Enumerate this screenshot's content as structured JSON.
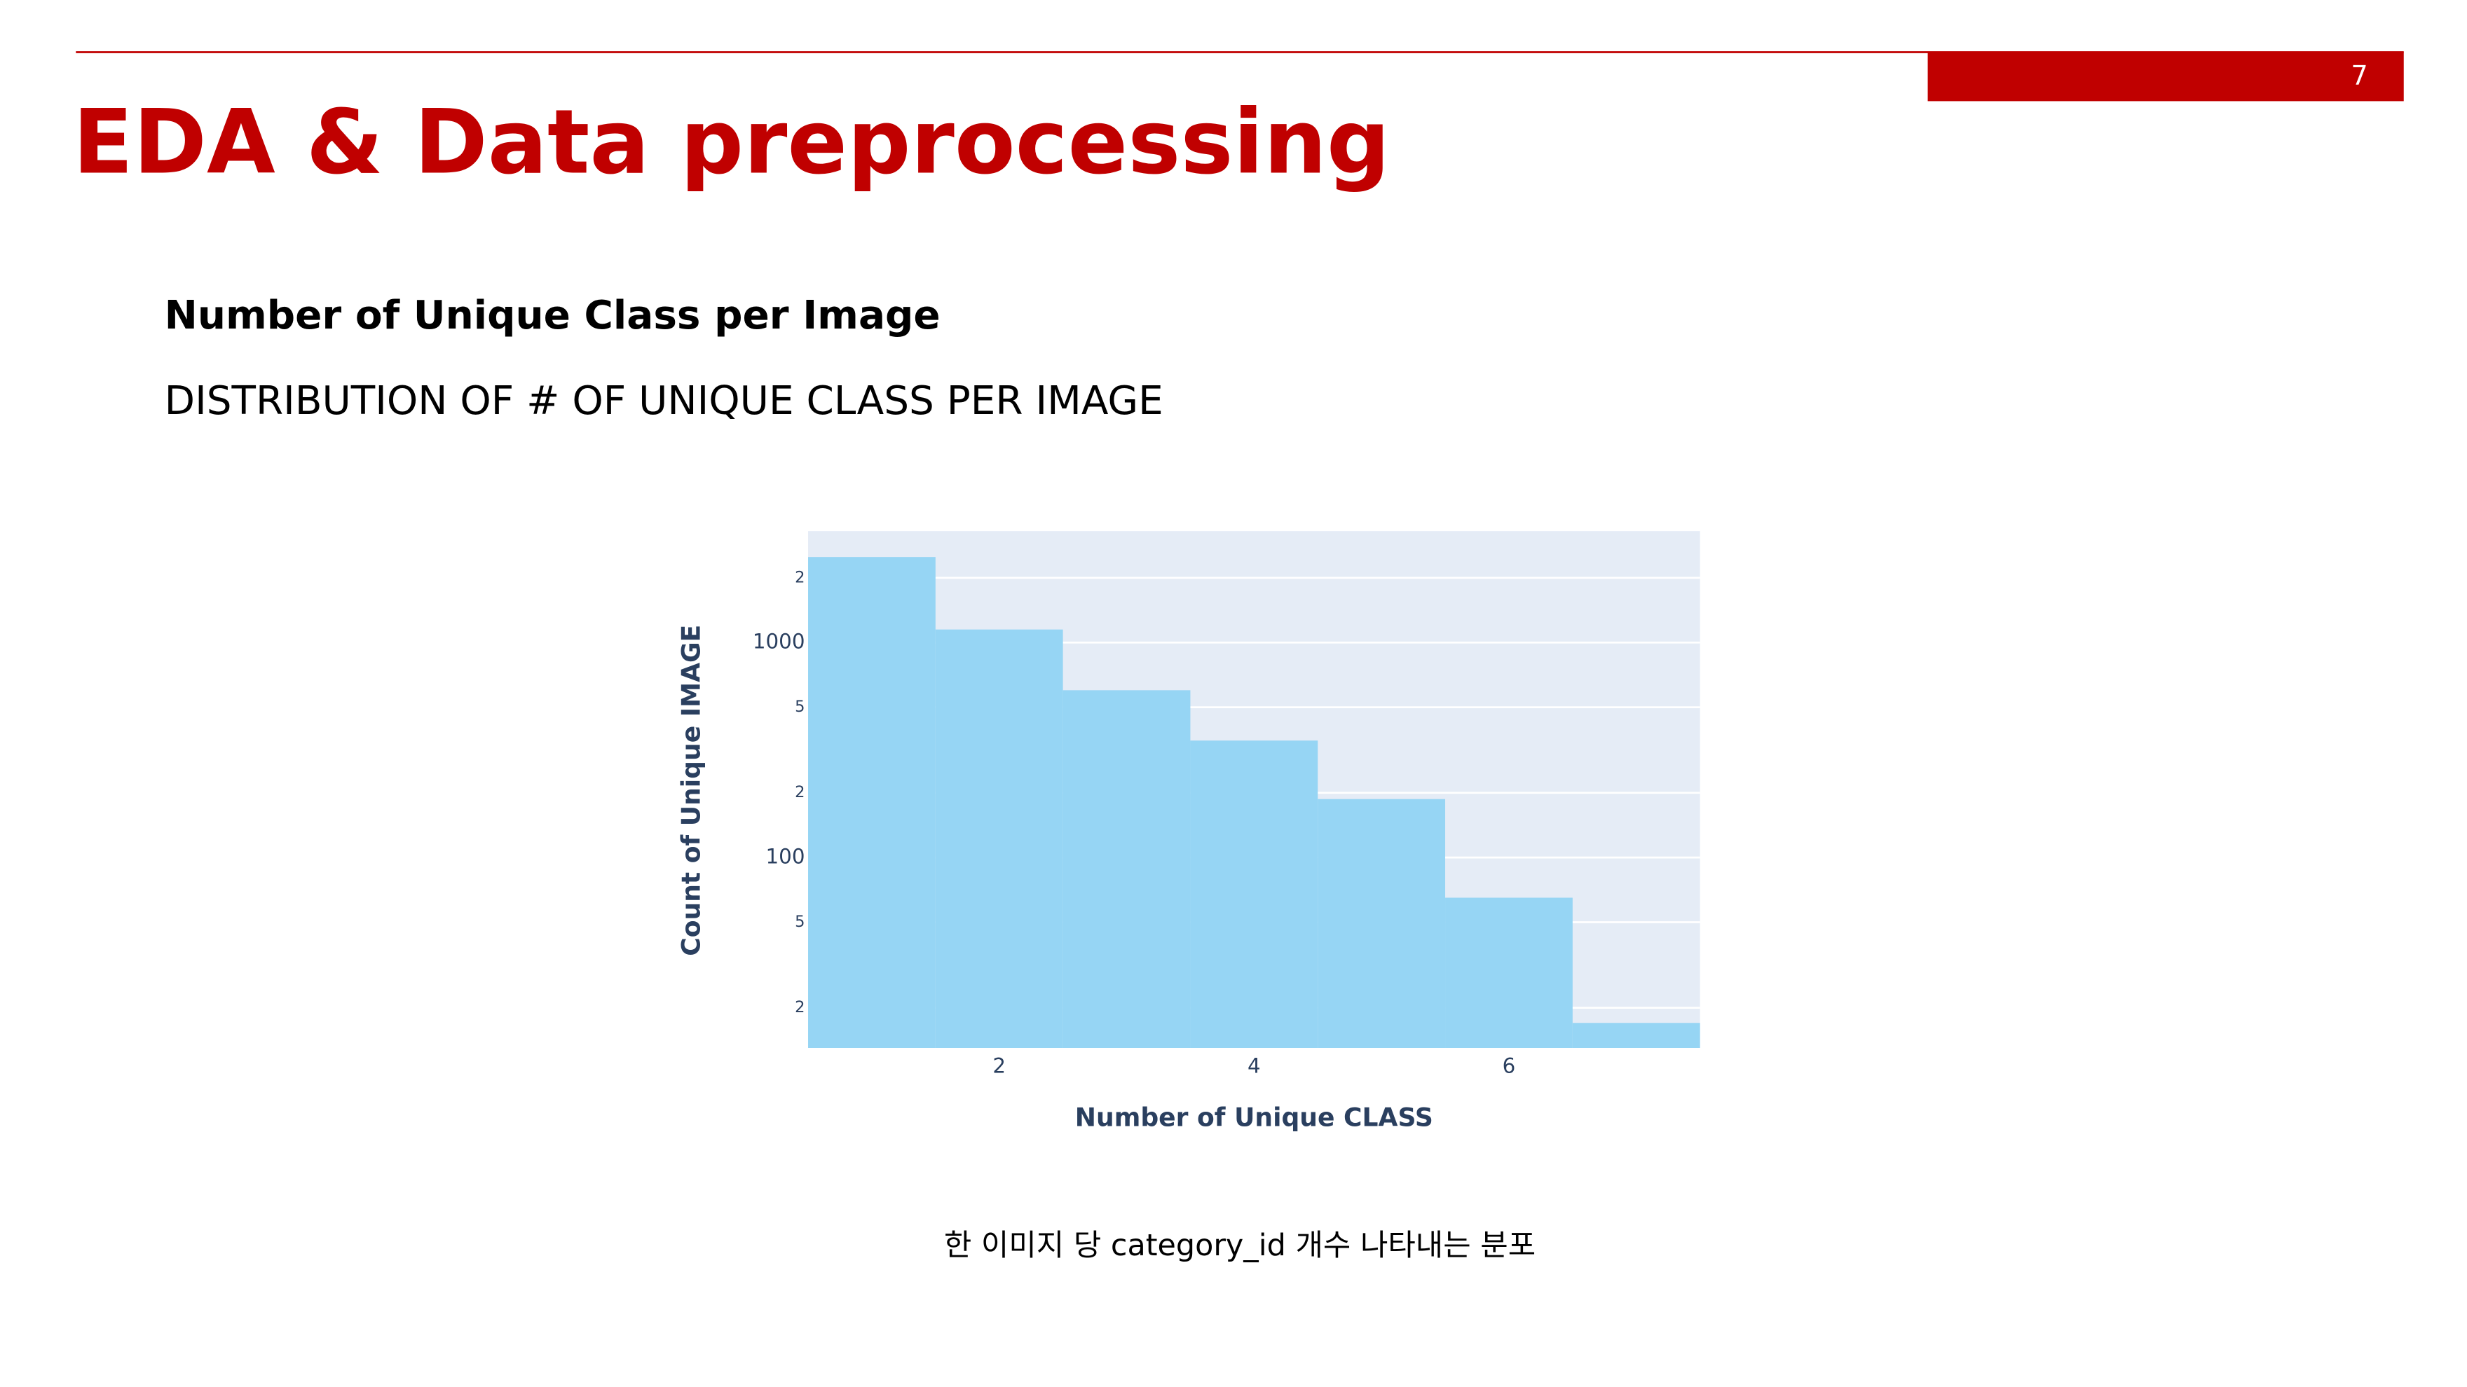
{
  "slide": {
    "title": "EDA & Data preprocessing",
    "page_number": "7",
    "heading": "Number of Unique Class per Image",
    "subheading": "DISTRIBUTION OF # OF UNIQUE CLASS PER IMAGE",
    "caption": "한 이미지 당 category_id 개수 나타내는 분포"
  },
  "chart_data": {
    "type": "histogram",
    "x_label": "Number of Unique CLASS",
    "y_label": "Count of Unique IMAGE",
    "bins": [
      0.5,
      1.5,
      2.5,
      3.5,
      4.5,
      5.5,
      6.5,
      7.5
    ],
    "values": [
      2500,
      1150,
      600,
      350,
      187,
      65,
      17
    ],
    "color": "#96d5f4",
    "xlim": [
      0.5,
      7.5
    ],
    "xticks": [
      2,
      4,
      6
    ],
    "ylim": [
      13,
      3300
    ],
    "y_scale": "log",
    "grid": true,
    "yticks": [
      {
        "value": 2000,
        "label": "2"
      },
      1000,
      {
        "value": 500,
        "label": "5"
      },
      {
        "value": 200,
        "label": "2"
      },
      100,
      {
        "value": 50,
        "label": "5"
      },
      {
        "value": 20,
        "label": "2"
      }
    ]
  }
}
